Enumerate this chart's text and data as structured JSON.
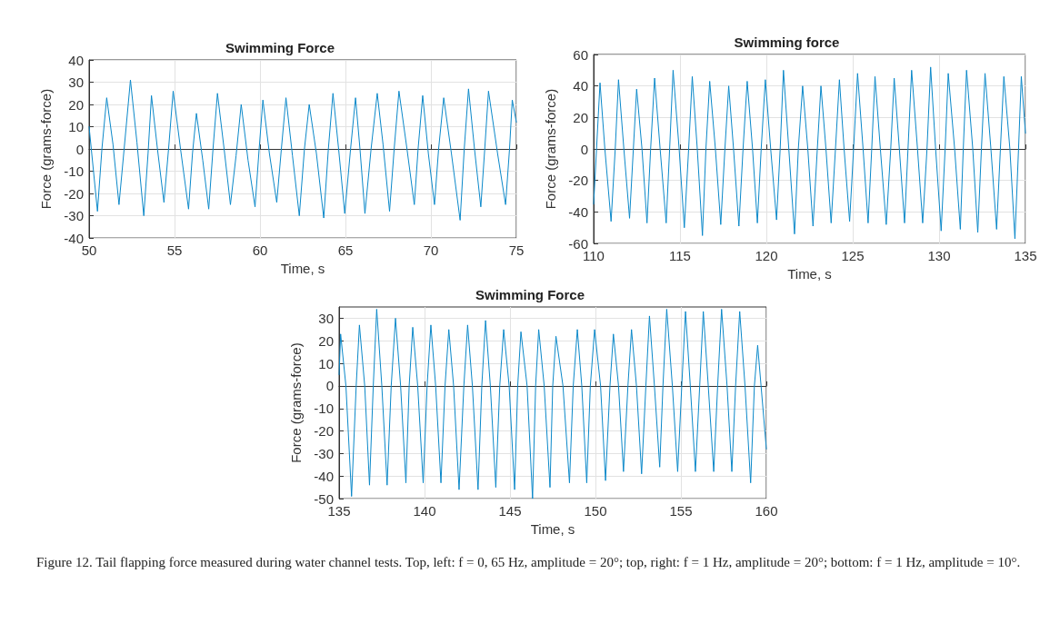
{
  "chart_data": [
    {
      "type": "line",
      "title": "Swimming Force",
      "xlabel": "Time, s",
      "ylabel": "Force (grams-force)",
      "xlim": [
        50,
        75
      ],
      "xticks": [
        50,
        55,
        60,
        65,
        70,
        75
      ],
      "ylim": [
        -40,
        40
      ],
      "yticks": [
        -40,
        -30,
        -20,
        -10,
        0,
        10,
        20,
        30,
        40
      ],
      "grid": true,
      "marker": "none",
      "line_style": "solid",
      "series": [
        {
          "color": "#0b88c9",
          "x": [
            50,
            50.49,
            50.75,
            51.03,
            51.4,
            51.75,
            52.05,
            52.42,
            52.8,
            53.2,
            53.45,
            53.65,
            54,
            54.38,
            54.65,
            54.92,
            55.35,
            55.82,
            56.05,
            56.28,
            56.65,
            57,
            57.25,
            57.51,
            57.9,
            58.27,
            58.6,
            58.9,
            59.3,
            59.71,
            59.95,
            60.17,
            60.55,
            60.98,
            61.25,
            61.52,
            61.9,
            62.3,
            62.6,
            62.88,
            63.3,
            63.73,
            64,
            64.27,
            64.6,
            64.96,
            65.3,
            65.59,
            65.85,
            66.14,
            66.5,
            66.86,
            67.2,
            67.58,
            67.85,
            68.13,
            68.6,
            69.03,
            69.25,
            69.52,
            69.85,
            70.21,
            70.45,
            70.75,
            71.2,
            71.71,
            71.95,
            72.2,
            72.55,
            72.92,
            73.15,
            73.37,
            73.9,
            74.37,
            74.6,
            74.76,
            75
          ],
          "values": [
            10,
            -28,
            0,
            23,
            2,
            -25,
            0,
            31,
            3,
            -30,
            -2,
            24,
            0,
            -24,
            0,
            26,
            0,
            -27,
            -2,
            16,
            -5,
            -27,
            0,
            25,
            0,
            -25,
            -3,
            20,
            -5,
            -26,
            0,
            22,
            -2,
            -24,
            0,
            23,
            -3,
            -30,
            0,
            20,
            -2,
            -31,
            0,
            25,
            0,
            -29,
            0,
            23,
            0,
            -29,
            0,
            25,
            2,
            -28,
            0,
            26,
            0,
            -25,
            0,
            24,
            -2,
            -25,
            0,
            23,
            -2,
            -32,
            0,
            27,
            0,
            -26,
            0,
            26,
            -2,
            -25,
            0,
            22,
            12
          ]
        }
      ]
    },
    {
      "type": "line",
      "title": "Swimming force",
      "xlabel": "Time, s",
      "ylabel": "Force (grams-force)",
      "xlim": [
        110,
        135
      ],
      "xticks": [
        110,
        115,
        120,
        125,
        130,
        135
      ],
      "ylim": [
        -60,
        60
      ],
      "yticks": [
        -60,
        -40,
        -20,
        0,
        20,
        40,
        60
      ],
      "grid": true,
      "marker": "none",
      "line_style": "solid",
      "series": [
        {
          "color": "#0b88c9",
          "x": [
            110,
            110.37,
            110.65,
            111.01,
            111.25,
            111.44,
            111.75,
            112.08,
            112.3,
            112.49,
            112.8,
            113.09,
            113.3,
            113.53,
            113.85,
            114.2,
            114.4,
            114.6,
            114.95,
            115.25,
            115.5,
            115.71,
            116,
            116.3,
            116.5,
            116.72,
            117.05,
            117.36,
            117.6,
            117.82,
            118.1,
            118.41,
            118.65,
            118.89,
            119.2,
            119.48,
            119.7,
            119.94,
            120.25,
            120.59,
            120.8,
            120.99,
            121.3,
            121.63,
            121.85,
            122.1,
            122.4,
            122.7,
            122.95,
            123.16,
            123.45,
            123.75,
            124,
            124.23,
            124.5,
            124.82,
            125.05,
            125.28,
            125.6,
            125.89,
            126.1,
            126.29,
            126.6,
            126.94,
            127.2,
            127.4,
            127.7,
            128,
            128.2,
            128.41,
            128.75,
            129.05,
            129.3,
            129.51,
            129.8,
            130.12,
            130.35,
            130.53,
            130.9,
            131.23,
            131.4,
            131.59,
            131.95,
            132.24,
            132.45,
            132.66,
            133,
            133.33,
            133.55,
            133.75,
            134.1,
            134.39,
            134.6,
            134.76,
            135
          ],
          "values": [
            -35,
            42,
            0,
            -46,
            0,
            44,
            0,
            -44,
            0,
            38,
            0,
            -47,
            0,
            45,
            0,
            -47,
            0,
            50,
            0,
            -50,
            0,
            46,
            0,
            -55,
            0,
            43,
            0,
            -48,
            0,
            40,
            0,
            -49,
            0,
            43,
            0,
            -47,
            0,
            44,
            0,
            -45,
            0,
            50,
            0,
            -54,
            0,
            40,
            0,
            -49,
            0,
            40,
            0,
            -47,
            0,
            44,
            0,
            -46,
            0,
            48,
            0,
            -47,
            0,
            46,
            0,
            -48,
            0,
            45,
            0,
            -47,
            0,
            50,
            0,
            -47,
            0,
            52,
            0,
            -52,
            0,
            48,
            0,
            -51,
            0,
            50,
            0,
            -53,
            0,
            48,
            0,
            -51,
            0,
            46,
            0,
            -57,
            0,
            46,
            10
          ]
        }
      ]
    },
    {
      "type": "line",
      "title": "Swimming Force",
      "xlabel": "Time, s",
      "ylabel": "Force (grams-force)",
      "xlim": [
        135,
        160
      ],
      "xticks": [
        135,
        140,
        145,
        150,
        155,
        160
      ],
      "ylim": [
        -50,
        35
      ],
      "yticks": [
        -50,
        -40,
        -30,
        -20,
        -10,
        0,
        10,
        20,
        30
      ],
      "grid": true,
      "marker": "none",
      "line_style": "solid",
      "annotations": [
        "Figure 12. Tail flapping force measured during water channel tests. Top, left: f = 0, 65 Hz, amplitude = 20°; top, right: f = 1 Hz, amplitude = 20°; bottom: f = 1 Hz, amplitude = 10°."
      ],
      "series": [
        {
          "color": "#0b88c9",
          "x": [
            135,
            135.09,
            135.4,
            135.73,
            136,
            136.19,
            136.5,
            136.78,
            137,
            137.2,
            137.5,
            137.81,
            138.05,
            138.3,
            138.6,
            138.91,
            139.1,
            139.31,
            139.6,
            139.92,
            140.15,
            140.37,
            140.65,
            140.96,
            141.2,
            141.42,
            141.7,
            142.02,
            142.3,
            142.52,
            142.8,
            143.13,
            143.35,
            143.57,
            143.85,
            144.17,
            144.4,
            144.63,
            144.95,
            145.27,
            145.45,
            145.64,
            146,
            146.32,
            146.5,
            146.68,
            147,
            147.34,
            147.5,
            147.69,
            148.1,
            148.48,
            148.7,
            148.94,
            149.2,
            149.49,
            149.7,
            149.95,
            150.3,
            150.59,
            150.85,
            151.05,
            151.35,
            151.64,
            151.9,
            152.11,
            152.4,
            152.7,
            152.95,
            153.16,
            153.45,
            153.76,
            153.95,
            154.17,
            154.5,
            154.81,
            155.05,
            155.27,
            155.55,
            155.85,
            156.1,
            156.31,
            156.6,
            156.92,
            157.15,
            157.38,
            157.7,
            157.98,
            158.2,
            158.44,
            158.75,
            159.08,
            159.3,
            159.49,
            160
          ],
          "values": [
            5,
            23,
            0,
            -49,
            0,
            27,
            0,
            -44,
            0,
            34,
            0,
            -44,
            0,
            30,
            0,
            -43,
            0,
            26,
            0,
            -43,
            0,
            27,
            0,
            -43,
            0,
            25,
            0,
            -46,
            0,
            27,
            0,
            -46,
            0,
            29,
            0,
            -45,
            0,
            25,
            0,
            -46,
            0,
            24,
            0,
            -50,
            0,
            25,
            0,
            -45,
            0,
            22,
            0,
            -43,
            0,
            25,
            0,
            -43,
            0,
            25,
            0,
            -42,
            0,
            23,
            0,
            -38,
            0,
            25,
            0,
            -39,
            0,
            31,
            0,
            -36,
            0,
            34,
            0,
            -38,
            0,
            33,
            0,
            -38,
            0,
            33,
            0,
            -38,
            0,
            34,
            0,
            -38,
            0,
            33,
            0,
            -43,
            0,
            18,
            -28
          ]
        }
      ]
    }
  ]
}
